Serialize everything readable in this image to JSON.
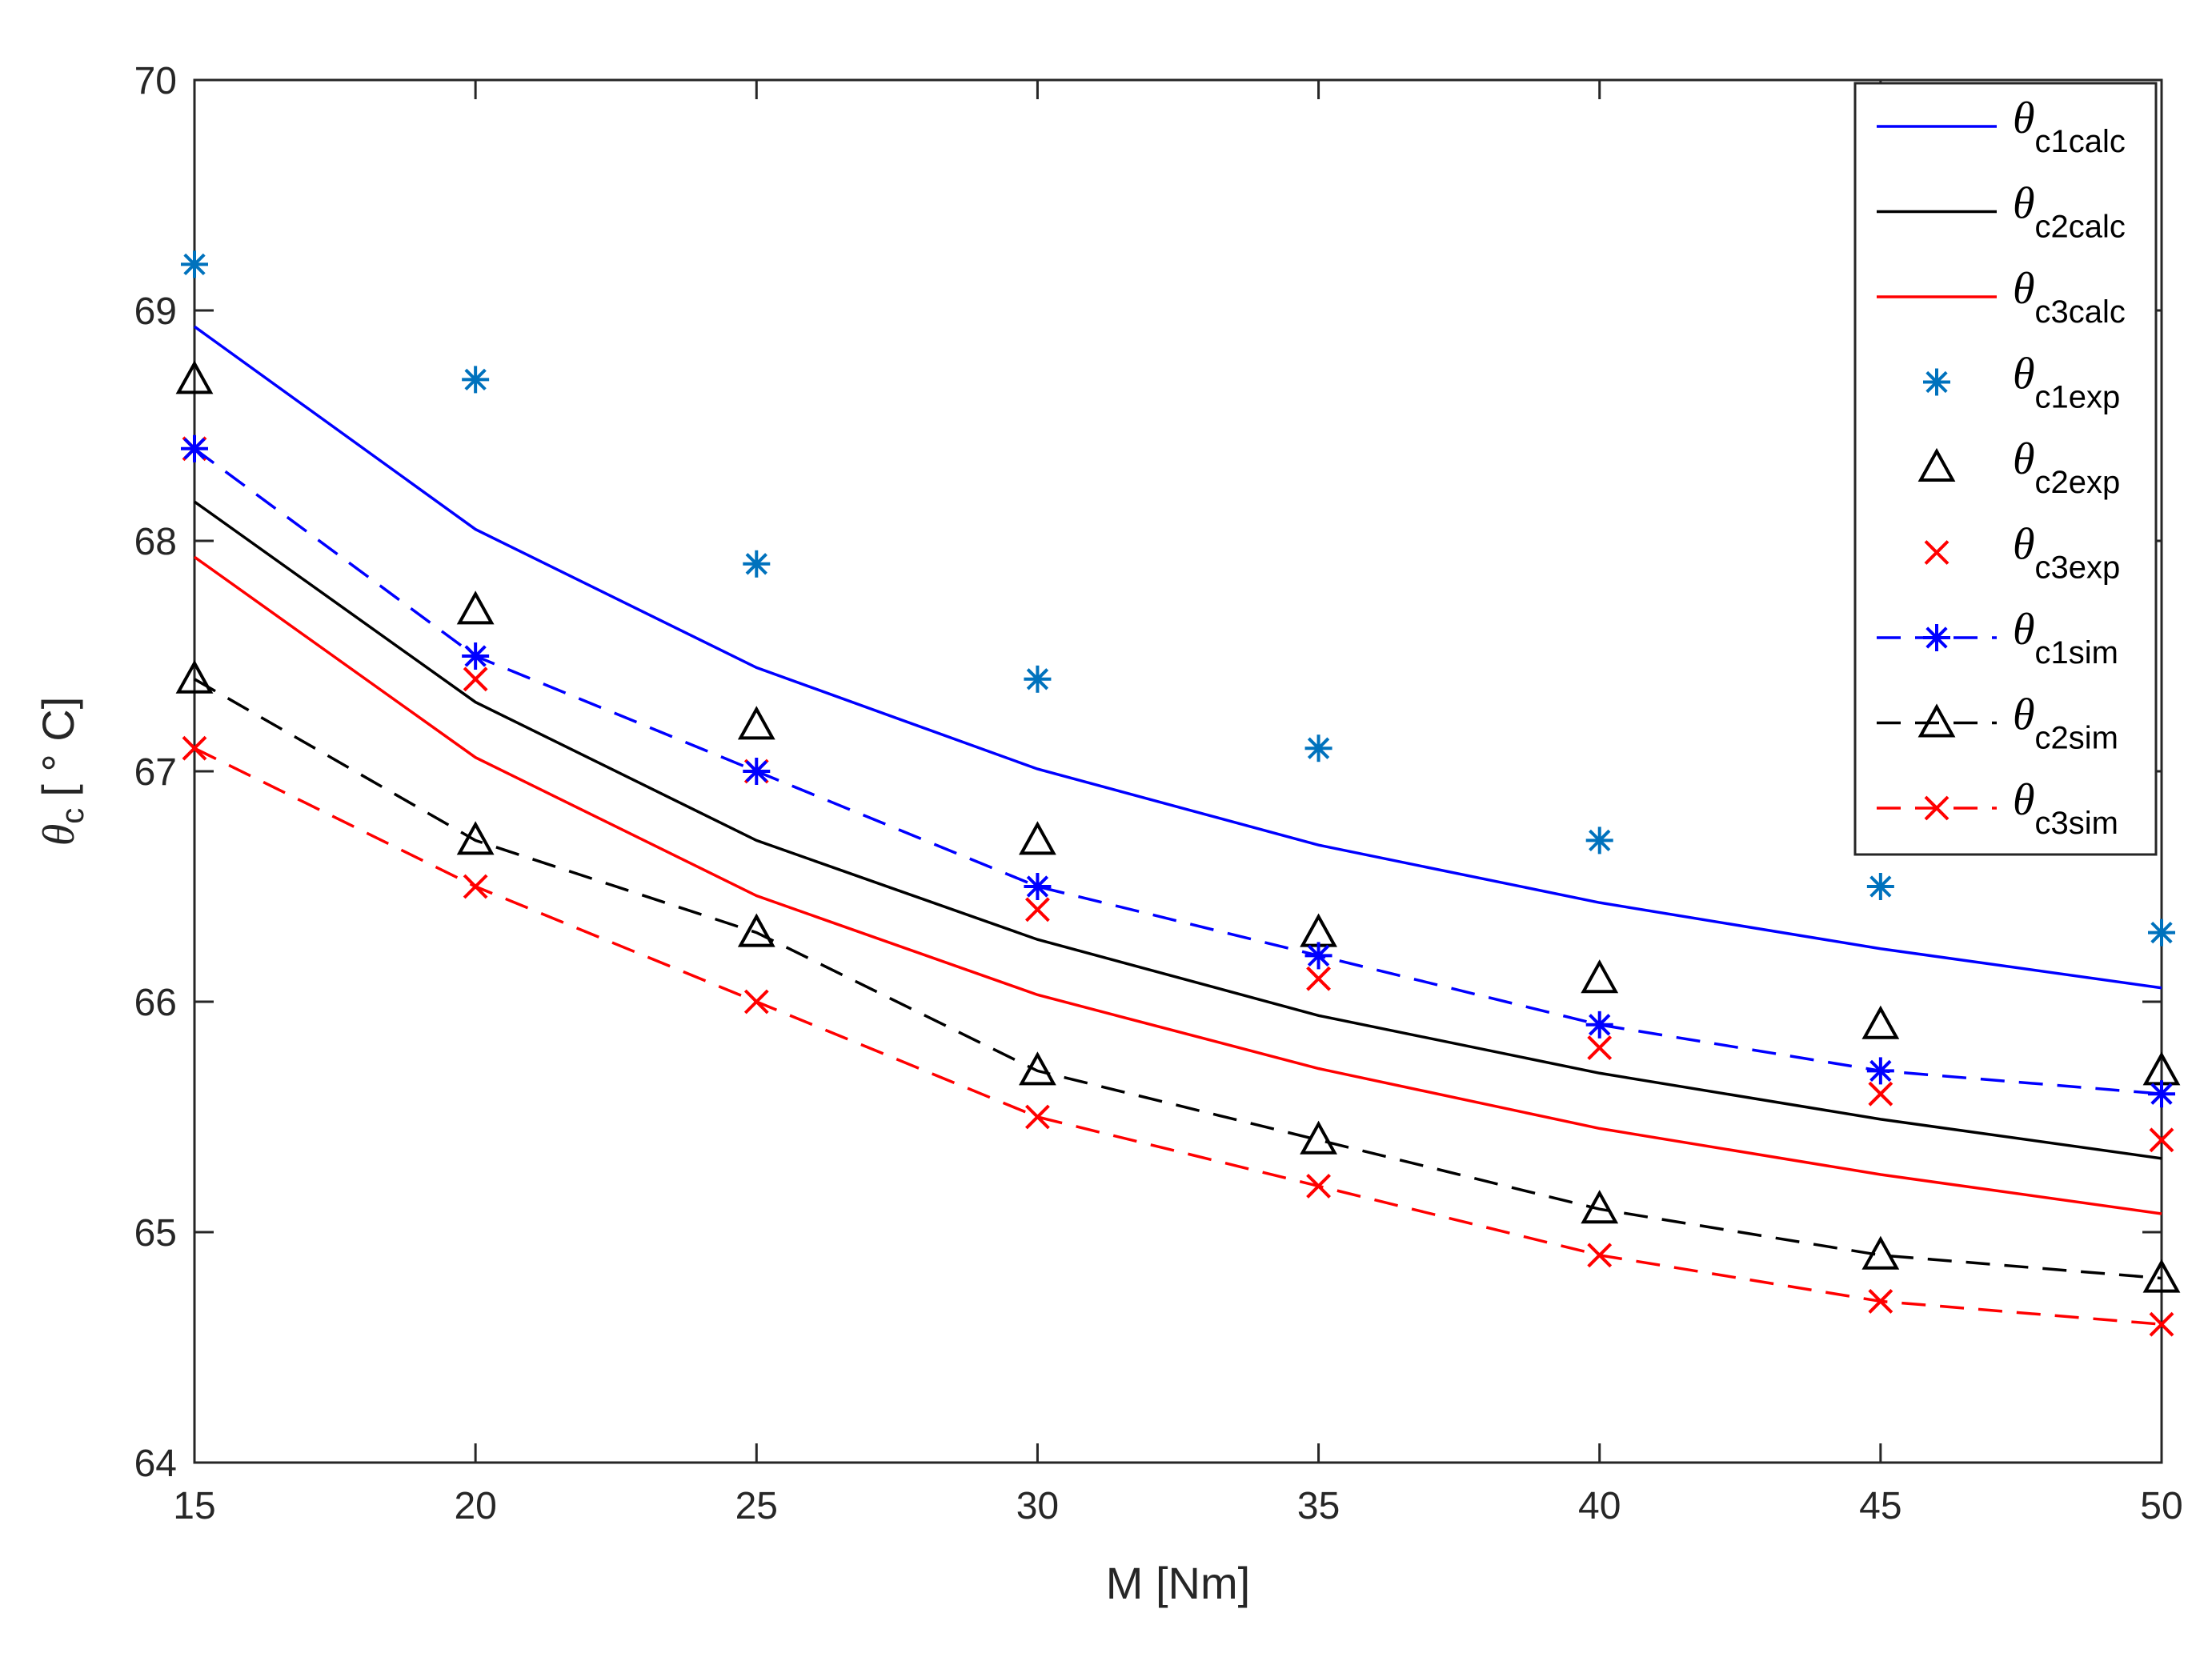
{
  "chart_data": {
    "type": "line",
    "xlabel": "M [Nm]",
    "ylabel": {
      "symbol": "θ",
      "subscript": "c",
      "unit": "[ ° C]"
    },
    "xlim": [
      15,
      50
    ],
    "ylim": [
      64,
      70
    ],
    "xticks": [
      "15",
      "20",
      "25",
      "30",
      "35",
      "40",
      "45",
      "50"
    ],
    "yticks": [
      "64",
      "65",
      "66",
      "67",
      "68",
      "69",
      "70"
    ],
    "x": [
      15,
      20,
      25,
      30,
      35,
      40,
      45,
      50
    ],
    "legend_position": "top-right",
    "series": [
      {
        "name": "θc1calc",
        "symbol": "θ",
        "sub": "c1calc",
        "color": "#0000FF",
        "line": "solid",
        "marker": "none",
        "values": [
          68.93,
          68.05,
          67.45,
          67.01,
          66.68,
          66.43,
          66.23,
          66.06
        ]
      },
      {
        "name": "θc2calc",
        "symbol": "θ",
        "sub": "c2calc",
        "color": "#000000",
        "line": "solid",
        "marker": "none",
        "values": [
          68.17,
          67.3,
          66.7,
          66.27,
          65.94,
          65.69,
          65.49,
          65.32
        ]
      },
      {
        "name": "θc3calc",
        "symbol": "θ",
        "sub": "c3calc",
        "color": "#FF0000",
        "line": "solid",
        "marker": "none",
        "values": [
          67.93,
          67.06,
          66.46,
          66.03,
          65.71,
          65.45,
          65.25,
          65.08
        ]
      },
      {
        "name": "θc1exp",
        "symbol": "θ",
        "sub": "c1exp",
        "color": "#0072BD",
        "line": "none",
        "marker": "asterisk",
        "values": [
          69.2,
          68.7,
          67.9,
          67.4,
          67.1,
          66.7,
          66.5,
          66.3
        ]
      },
      {
        "name": "θc2exp",
        "symbol": "θ",
        "sub": "c2exp",
        "color": "#000000",
        "line": "none",
        "marker": "triangle",
        "values": [
          68.7,
          67.7,
          67.2,
          66.7,
          66.3,
          66.1,
          65.9,
          65.7
        ]
      },
      {
        "name": "θc3exp",
        "symbol": "θ",
        "sub": "c3exp",
        "color": "#FF0000",
        "line": "none",
        "marker": "x",
        "values": [
          68.4,
          67.4,
          67.0,
          66.4,
          66.1,
          65.8,
          65.6,
          65.4
        ]
      },
      {
        "name": "θc1sim",
        "symbol": "θ",
        "sub": "c1sim",
        "color": "#0000FF",
        "line": "dashed",
        "marker": "asterisk",
        "values": [
          68.4,
          67.5,
          67.0,
          66.5,
          66.2,
          65.9,
          65.7,
          65.6
        ]
      },
      {
        "name": "θc2sim",
        "symbol": "θ",
        "sub": "c2sim",
        "color": "#000000",
        "line": "dashed",
        "marker": "triangle",
        "values": [
          67.4,
          66.7,
          66.3,
          65.7,
          65.4,
          65.1,
          64.9,
          64.8
        ]
      },
      {
        "name": "θc3sim",
        "symbol": "θ",
        "sub": "c3sim",
        "color": "#FF0000",
        "line": "dashed",
        "marker": "x",
        "values": [
          67.1,
          66.5,
          66.0,
          65.5,
          65.2,
          64.9,
          64.7,
          64.6
        ]
      }
    ]
  }
}
